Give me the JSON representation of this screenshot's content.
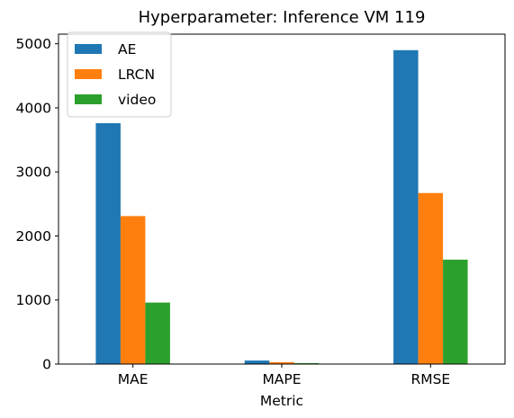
{
  "chart_data": {
    "type": "bar",
    "title": "Hyperparameter: Inference VM 119",
    "xlabel": "Metric",
    "ylabel": "",
    "categories": [
      "MAE",
      "MAPE",
      "RMSE"
    ],
    "series": [
      {
        "name": "AE",
        "color": "#1f77b4",
        "values": [
          3760,
          55,
          4900
        ]
      },
      {
        "name": "LRCN",
        "color": "#ff7f0e",
        "values": [
          2310,
          30,
          2670
        ]
      },
      {
        "name": "video",
        "color": "#2ca02c",
        "values": [
          960,
          15,
          1630
        ]
      }
    ],
    "ylim": [
      0,
      5150
    ],
    "yticks": [
      0,
      1000,
      2000,
      3000,
      4000,
      5000
    ],
    "ytick_labels": [
      "0",
      "1000",
      "2000",
      "3000",
      "4000",
      "5000"
    ],
    "grid": false,
    "legend_position": "upper-left"
  }
}
